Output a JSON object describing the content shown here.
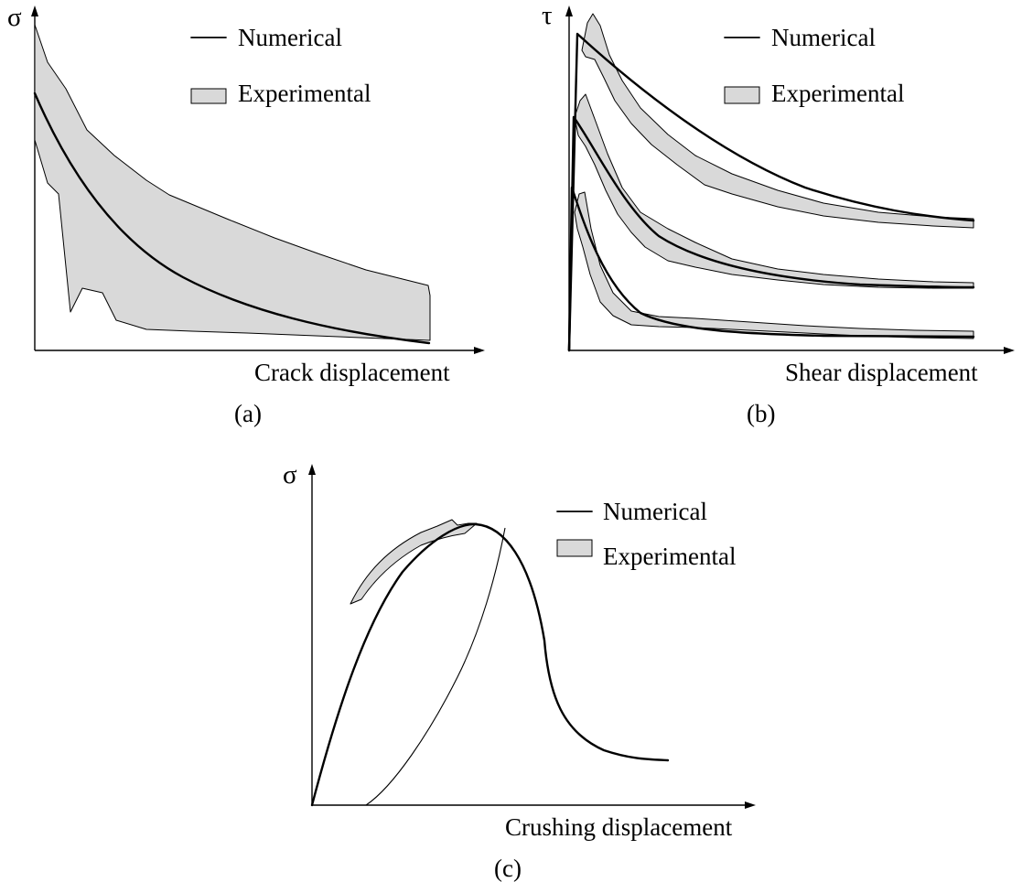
{
  "colors": {
    "band_fill": "#d9d9d9",
    "line": "#000000"
  },
  "chart_data": [
    {
      "type": "line",
      "panel_label": "(a)",
      "ylabel": "σ",
      "xlabel": "Crack displacement",
      "legend": {
        "position": "top-right",
        "entries": [
          {
            "label": "Numerical",
            "style": "line"
          },
          {
            "label": "Experimental",
            "style": "band"
          }
        ]
      },
      "xlim": [
        0,
        10
      ],
      "ylim": [
        0,
        10
      ],
      "series": [
        {
          "name": "Numerical",
          "style": "line",
          "x": [
            0,
            0.5,
            1,
            1.5,
            2,
            2.5,
            3,
            3.5,
            4,
            4.5,
            5,
            5.5,
            6,
            6.5,
            7,
            7.5,
            8,
            8.5,
            9,
            9.5
          ],
          "y": [
            7.4,
            6.4,
            5.55,
            4.8,
            4.15,
            3.55,
            3.05,
            2.6,
            2.2,
            1.85,
            1.55,
            1.3,
            1.05,
            0.85,
            0.65,
            0.5,
            0.38,
            0.27,
            0.15,
            0.06
          ]
        },
        {
          "name": "Experimental",
          "style": "band",
          "x_upper": [
            0,
            0.3,
            0.8,
            1.2,
            1.8,
            2.5,
            3,
            4,
            5,
            6,
            7,
            8,
            9,
            9.2
          ],
          "upper": [
            9.8,
            8.5,
            7.5,
            6.2,
            5.5,
            4.6,
            4.2,
            3.6,
            3.0,
            2.6,
            2.2,
            1.9,
            1.65,
            1.55
          ],
          "x_lower": [
            9.2,
            8,
            7,
            6,
            5,
            4,
            3,
            2.5,
            1.7,
            1.5,
            1.0,
            0.7,
            0.5,
            0.25,
            0
          ],
          "lower": [
            0.25,
            0.3,
            0.35,
            0.4,
            0.5,
            0.6,
            0.7,
            0.75,
            0.9,
            1.5,
            1.65,
            1.4,
            3.7,
            4.3,
            6.0
          ]
        }
      ]
    },
    {
      "type": "line",
      "panel_label": "(b)",
      "ylabel": "τ",
      "xlabel": "Shear displacement",
      "legend": {
        "position": "top-right",
        "entries": [
          {
            "label": "Numerical",
            "style": "line"
          },
          {
            "label": "Experimental",
            "style": "band"
          }
        ]
      },
      "xlim": [
        0,
        10
      ],
      "ylim": [
        0,
        10
      ],
      "series": [
        {
          "style": "line",
          "x": [
            0,
            0.15,
            0.5,
            1,
            1.5,
            2,
            2.5,
            3,
            4,
            5,
            6,
            7,
            8,
            9,
            10,
            10.2
          ],
          "y": [
            0,
            9.3,
            8.6,
            7.9,
            7.2,
            6.6,
            6.05,
            5.5,
            4.7,
            4.1,
            3.7,
            3.45,
            3.3,
            3.2,
            3.1,
            3.05
          ]
        },
        {
          "style": "line",
          "x": [
            0,
            0.12,
            0.5,
            1,
            1.5,
            2,
            2.5,
            3,
            4,
            5,
            6,
            7,
            8,
            9,
            10,
            10.2
          ],
          "y": [
            0,
            6.9,
            5.9,
            4.8,
            3.9,
            3.2,
            2.7,
            2.3,
            1.9,
            1.65,
            1.5,
            1.45,
            1.4,
            1.4,
            1.4,
            1.4
          ]
        },
        {
          "style": "line",
          "x": [
            0,
            0.1,
            0.4,
            0.8,
            1.2,
            1.6,
            2,
            2.5,
            3,
            4,
            5,
            6,
            7,
            8,
            9,
            10,
            10.2
          ],
          "y": [
            0,
            4.6,
            3.6,
            2.6,
            1.8,
            1.2,
            0.8,
            0.55,
            0.45,
            0.38,
            0.33,
            0.3,
            0.28,
            0.26,
            0.25,
            0.24,
            0.24
          ]
        }
      ]
    },
    {
      "type": "line",
      "panel_label": "(c)",
      "ylabel": "σ",
      "xlabel": "Crushing displacement",
      "legend": {
        "position": "top-right",
        "entries": [
          {
            "label": "Numerical",
            "style": "line"
          },
          {
            "label": "Experimental",
            "style": "band"
          }
        ]
      },
      "xlim": [
        0,
        10
      ],
      "ylim": [
        0,
        10
      ],
      "series": [
        {
          "name": "Numerical",
          "style": "line",
          "x": [
            0,
            0.5,
            1,
            1.5,
            2,
            2.5,
            3,
            3.5,
            4,
            4.5,
            5,
            5.4,
            5.7,
            6,
            6.3,
            6.6,
            7,
            7.5,
            8,
            8.5,
            9,
            9.5,
            10
          ],
          "y": [
            0,
            2.6,
            4.7,
            6.3,
            7.6,
            8.5,
            9.2,
            9.6,
            9.8,
            9.6,
            9.0,
            7.8,
            6.3,
            4.6,
            3.5,
            2.9,
            2.5,
            2.2,
            2.0,
            1.85,
            1.75,
            1.7,
            1.65
          ]
        },
        {
          "name": "Experimental",
          "style": "band",
          "x": [
            1.5,
            2,
            2.5,
            3,
            3.5,
            4,
            4.5
          ],
          "upper": [
            6.5,
            7.9,
            8.9,
            9.5,
            9.85,
            9.9,
            9.8
          ],
          "lower": [
            6.3,
            7.6,
            8.5,
            9.1,
            9.4,
            9.6,
            9.6
          ]
        }
      ]
    }
  ]
}
